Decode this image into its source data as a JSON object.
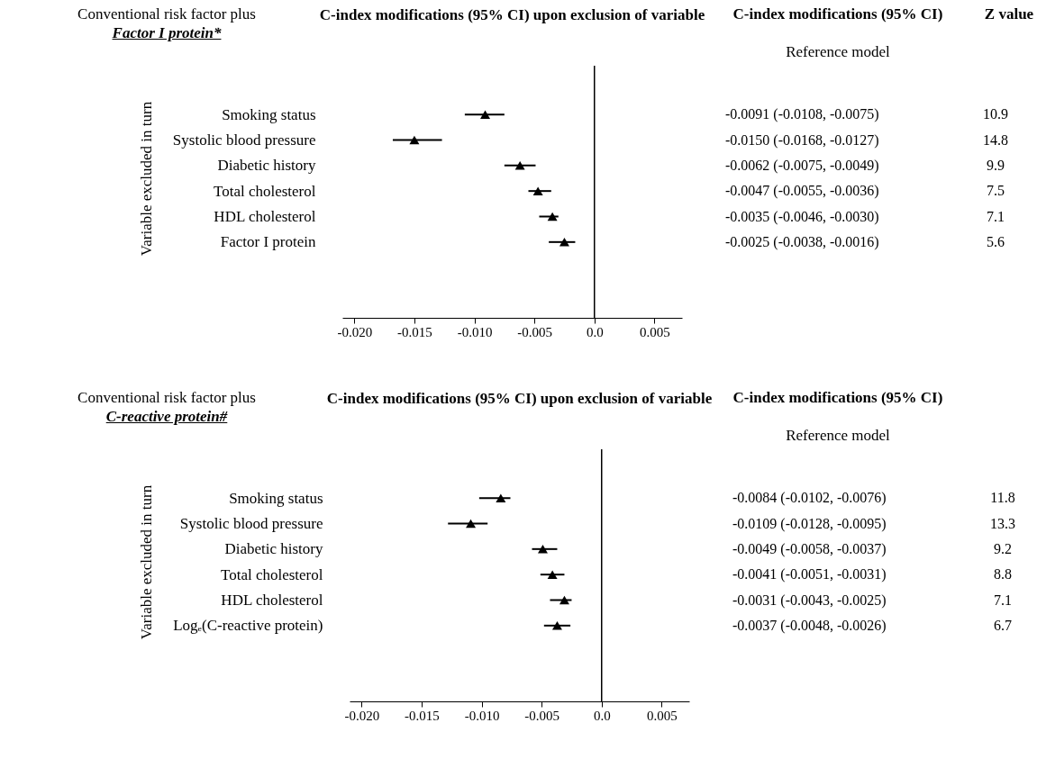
{
  "chart_data": [
    {
      "type": "scatter",
      "orientation": "horizontal",
      "title": "C-index modifications (95% CI) upon exclusion of variable",
      "ylabel": "Variable excluded in turn",
      "marker": "triangle",
      "color": "#000000",
      "categories": [
        "Smoking status",
        "Systolic blood pressure",
        "Diabetic history",
        "Total cholesterol",
        "HDL cholesterol",
        "Factor I protein"
      ],
      "values": [
        -0.0091,
        -0.015,
        -0.0062,
        -0.0047,
        -0.0035,
        -0.0025
      ],
      "errors": [
        [
          -0.0108,
          -0.0075
        ],
        [
          -0.0168,
          -0.0127
        ],
        [
          -0.0075,
          -0.0049
        ],
        [
          -0.0055,
          -0.0036
        ],
        [
          -0.0046,
          -0.003
        ],
        [
          -0.0038,
          -0.0016
        ]
      ],
      "value_labels": [
        "-0.0091 (-0.0108, -0.0075)",
        "-0.0150 (-0.0168, -0.0127)",
        "-0.0062 (-0.0075, -0.0049)",
        "-0.0047 (-0.0055, -0.0036)",
        "-0.0035 (-0.0046, -0.0030)",
        "-0.0025 (-0.0038, -0.0016)"
      ],
      "xlim": [
        -0.021,
        0.0073
      ],
      "xticks": [
        {
          "value": -0.02,
          "label": "-0.020"
        },
        -0.015,
        {
          "value": -0.01,
          "label": "-0.010"
        },
        -0.005,
        {
          "value": 0,
          "label": "0.0"
        },
        0.005
      ],
      "ref_lines": [
        {
          "axis": "x",
          "value": 0
        }
      ],
      "annotations": [
        "Conventional risk factor plus",
        "Factor I protein*",
        "C-index modifications (95% CI)",
        "Reference model",
        "Z value",
        "10.9",
        "14.8",
        "9.9",
        "7.5",
        "7.1",
        "5.6"
      ]
    },
    {
      "type": "scatter",
      "orientation": "horizontal",
      "title": "C-index modifications (95% CI) upon exclusion of variable",
      "ylabel": "Variable excluded in turn",
      "marker": "triangle",
      "color": "#000000",
      "categories": [
        "Smoking status",
        "Systolic blood pressure",
        "Diabetic history",
        "Total cholesterol",
        "HDL cholesterol",
        "Logₑ(C-reactive protein)"
      ],
      "values": [
        -0.0084,
        -0.0109,
        -0.0049,
        -0.0041,
        -0.0031,
        -0.0037
      ],
      "errors": [
        [
          -0.0102,
          -0.0076
        ],
        [
          -0.0128,
          -0.0095
        ],
        [
          -0.0058,
          -0.0037
        ],
        [
          -0.0051,
          -0.0031
        ],
        [
          -0.0043,
          -0.0025
        ],
        [
          -0.0048,
          -0.0026
        ]
      ],
      "value_labels": [
        "-0.0084 (-0.0102, -0.0076)",
        "-0.0109 (-0.0128, -0.0095)",
        "-0.0049 (-0.0058, -0.0037)",
        "-0.0041 (-0.0051, -0.0031)",
        "-0.0031 (-0.0043, -0.0025)",
        "-0.0037 (-0.0048, -0.0026)"
      ],
      "xlim": [
        -0.021,
        0.0073
      ],
      "xticks": [
        {
          "value": -0.02,
          "label": "-0.020"
        },
        -0.015,
        {
          "value": -0.01,
          "label": "-0.010"
        },
        -0.005,
        {
          "value": 0,
          "label": "0.0"
        },
        0.005
      ],
      "ref_lines": [
        {
          "axis": "x",
          "value": 0
        }
      ],
      "annotations": [
        "Conventional risk factor plus",
        "C-reactive protein#",
        "C-index modifications (95% CI)",
        "Reference model",
        "11.8",
        "13.3",
        "9.2",
        "8.8",
        "7.1",
        "6.7"
      ]
    }
  ]
}
